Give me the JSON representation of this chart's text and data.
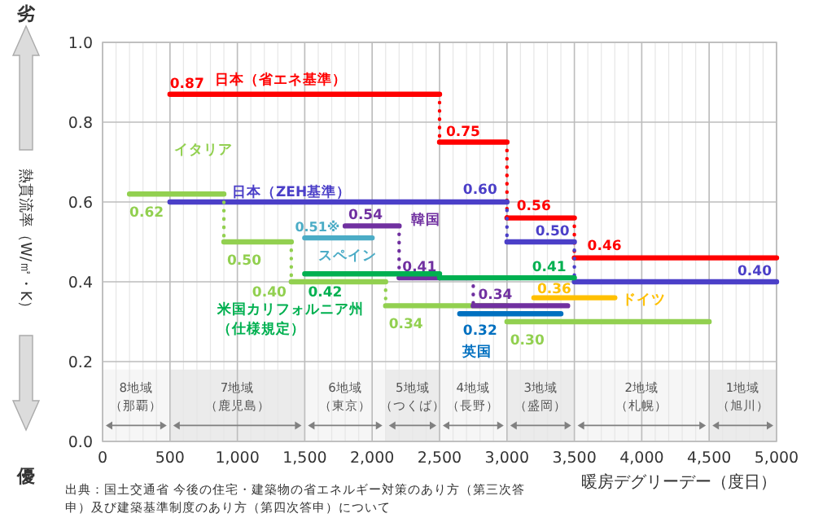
{
  "chart_data": {
    "type": "line",
    "xlabel": "暖房デグリーデー（度日）",
    "ylabel": "熱貫流率（W/㎡・K）",
    "xlim": [
      0,
      5000
    ],
    "ylim": [
      0,
      1
    ],
    "xticks": [
      0,
      500,
      {
        "value": 1000,
        "label": "1,000"
      },
      {
        "value": 1500,
        "label": "1,500"
      },
      {
        "value": 2000,
        "label": "2,000"
      },
      {
        "value": 2500,
        "label": "2,500"
      },
      {
        "value": 3000,
        "label": "3,000"
      },
      {
        "value": 3500,
        "label": "3,500"
      },
      {
        "value": 4000,
        "label": "4,000"
      },
      {
        "value": 4500,
        "label": "4,500"
      },
      {
        "value": 5000,
        "label": "5,000"
      }
    ],
    "yticks": [
      {
        "value": 0,
        "label": "0.0"
      },
      0.2,
      0.4,
      0.6,
      0.8,
      {
        "value": 1,
        "label": "1.0"
      }
    ],
    "grid": true,
    "series": [
      {
        "name": "日本（省エネ基準）",
        "color": "#ff0000",
        "x": [
          500,
          2500,
          2500,
          3000,
          3000,
          3500,
          3500,
          5000
        ],
        "values": [
          0.87,
          0.87,
          0.75,
          0.75,
          0.56,
          0.56,
          0.46,
          0.46
        ],
        "value_labels": [
          "0.87",
          null,
          "0.75",
          null,
          "0.56",
          null,
          "0.46",
          null
        ]
      },
      {
        "name": "日本（ZEH基準）",
        "color": "#4b3fc8",
        "x": [
          500,
          3000,
          3000,
          3500,
          3500,
          5000
        ],
        "values": [
          0.6,
          0.6,
          0.5,
          0.5,
          0.4,
          0.4
        ],
        "value_labels": [
          null,
          "0.60",
          null,
          "0.50",
          null,
          "0.40"
        ]
      },
      {
        "name": "イタリア",
        "color": "#92d050",
        "x": [
          200,
          900,
          900,
          1400,
          1400,
          2100,
          2100,
          3000,
          3000,
          4500
        ],
        "values": [
          0.62,
          0.62,
          0.5,
          0.5,
          0.4,
          0.4,
          0.34,
          0.34,
          0.3,
          0.3
        ],
        "value_labels": [
          "0.62",
          null,
          "0.50",
          null,
          "0.40",
          null,
          "0.34",
          null,
          "0.30",
          null
        ]
      },
      {
        "name": "スペイン",
        "color": "#4bacc6",
        "x": [
          1500,
          2000
        ],
        "values": [
          0.51,
          0.51
        ],
        "value_labels": [
          "0.51※",
          null
        ]
      },
      {
        "name": "韓国",
        "color": "#7030a0",
        "x": [
          1800,
          2200,
          2200,
          2750,
          2750,
          3450
        ],
        "values": [
          0.54,
          0.54,
          0.41,
          0.41,
          0.34,
          0.34
        ],
        "value_labels": [
          "0.54",
          null,
          "0.41",
          null,
          "0.34",
          null
        ]
      },
      {
        "name": "米国カリフォルニア州（仕様規定）",
        "color": "#00b050",
        "x": [
          1500,
          2500,
          2500,
          3500
        ],
        "values": [
          0.42,
          0.42,
          0.41,
          0.41
        ],
        "value_labels": [
          "0.42",
          null,
          null,
          "0.41"
        ]
      },
      {
        "name": "ドイツ",
        "color": "#ffc000",
        "x": [
          3200,
          3800
        ],
        "values": [
          0.36,
          0.36
        ],
        "value_labels": [
          "0.36",
          null
        ]
      },
      {
        "name": "英国",
        "color": "#0070c0",
        "x": [
          2650,
          3400
        ],
        "values": [
          0.32,
          0.32
        ],
        "value_labels": [
          "0.32",
          null
        ]
      }
    ],
    "bands": [
      {
        "axis": "x",
        "from": 0,
        "to": 500,
        "label": "8地域（那覇）",
        "color": "#808080"
      },
      {
        "axis": "x",
        "from": 500,
        "to": 1500,
        "label": "7地域（鹿児島）",
        "color": "#808080"
      },
      {
        "axis": "x",
        "from": 1500,
        "to": 2100,
        "label": "6地域（東京）",
        "color": "#808080"
      },
      {
        "axis": "x",
        "from": 2100,
        "to": 2500,
        "label": "5地域（つくば）",
        "color": "#808080"
      },
      {
        "axis": "x",
        "from": 2500,
        "to": 3000,
        "label": "4地域（長野）",
        "color": "#808080"
      },
      {
        "axis": "x",
        "from": 3000,
        "to": 3500,
        "label": "3地域（盛岡）",
        "color": "#808080"
      },
      {
        "axis": "x",
        "from": 3500,
        "to": 4500,
        "label": "2地域（札幌）",
        "color": "#808080"
      },
      {
        "axis": "x",
        "from": 4500,
        "to": 5000,
        "label": "1地域（旭川）",
        "color": "#808080"
      }
    ],
    "annotations": [
      "劣",
      "優",
      "出典：国土交通省 今後の住宅・建築物の省エネルギー対策のあり方（第三次答申）及び建築基準制度のあり方（第四次答申）について"
    ]
  }
}
